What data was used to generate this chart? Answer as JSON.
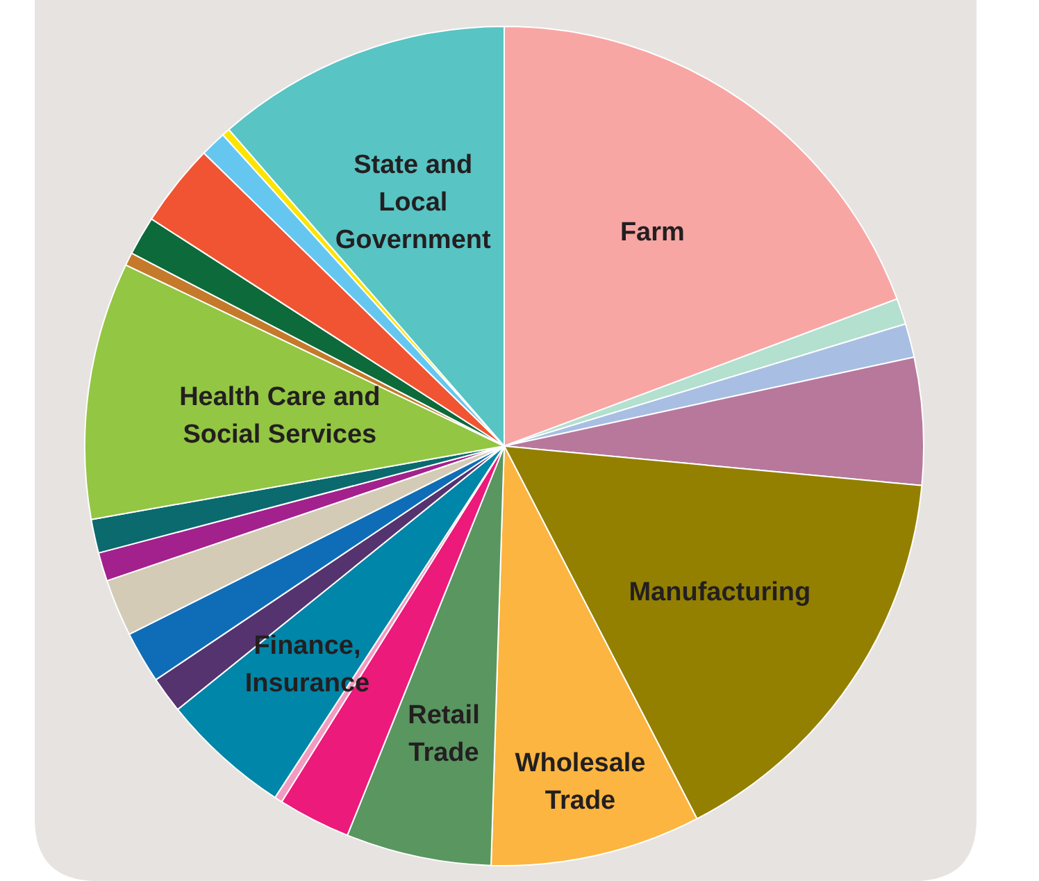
{
  "chart_data": {
    "type": "pie",
    "categories": [
      "Farm",
      null,
      null,
      null,
      "Manufacturing",
      "Wholesale Trade",
      "Retail Trade",
      null,
      null,
      "Finance, Insurance",
      null,
      null,
      null,
      null,
      null,
      "Health Care and Social Services",
      null,
      null,
      null,
      null,
      null,
      "State and Local Government"
    ],
    "values": [
      19.3,
      1.0,
      1.3,
      4.9,
      15.9,
      8.1,
      5.6,
      2.8,
      0.3,
      5.0,
      1.4,
      2.0,
      2.2,
      1.1,
      1.3,
      9.9,
      0.5,
      1.5,
      3.2,
      1.0,
      0.3,
      11.4
    ],
    "colors": [
      "#f7a6a4",
      "#b3e0cf",
      "#a8bfe3",
      "#b7789c",
      "#938000",
      "#fbb540",
      "#5a9660",
      "#ec1a7a",
      "#f49ac0",
      "#0086a8",
      "#55336e",
      "#0f6db7",
      "#d3cbb6",
      "#a3218c",
      "#0b6a6e",
      "#93c642",
      "#c47a2a",
      "#0d6a3a",
      "#f05432",
      "#65c7f0",
      "#fce400",
      "#58c4c4"
    ]
  }
}
